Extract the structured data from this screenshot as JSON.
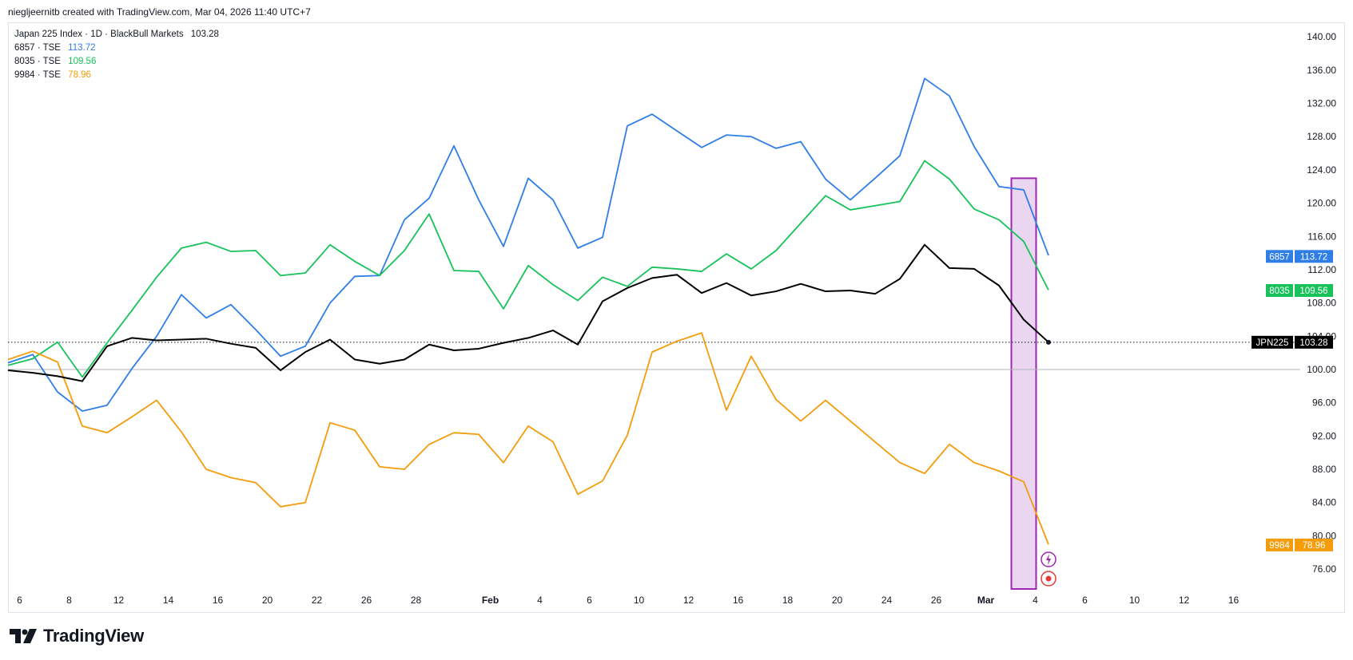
{
  "header": {
    "text": "niegljeernitb created with TradingView.com, Mar 04, 2026 11:40 UTC+7"
  },
  "legend": {
    "main": "Japan 225 Index · 1D · BlackBull Markets",
    "main_value": "103.28",
    "items": [
      {
        "label": "6857 · TSE",
        "value": "113.72",
        "color": "#2f7ee8"
      },
      {
        "label": "8035 · TSE",
        "value": "109.56",
        "color": "#17c25a"
      },
      {
        "label": "9984 · TSE",
        "value": "78.96",
        "color": "#f59c0b"
      }
    ]
  },
  "footer": {
    "logo_text": "TradingView"
  },
  "chart_data": {
    "type": "line",
    "ylim": [
      72.5,
      141.5
    ],
    "y_ticks": [
      "140.00",
      "136.00",
      "132.00",
      "128.00",
      "124.00",
      "120.00",
      "116.00",
      "112.00",
      "108.00",
      "104.00",
      "100.00",
      "96.00",
      "92.00",
      "88.00",
      "84.00",
      "80.00",
      "76.00"
    ],
    "x_ticks": [
      {
        "label": "6",
        "i": 0.5
      },
      {
        "label": "8",
        "i": 2.5
      },
      {
        "label": "12",
        "i": 4.5
      },
      {
        "label": "14",
        "i": 6.5
      },
      {
        "label": "16",
        "i": 8.5
      },
      {
        "label": "20",
        "i": 10.5
      },
      {
        "label": "22",
        "i": 12.5
      },
      {
        "label": "26",
        "i": 14.5
      },
      {
        "label": "28",
        "i": 16.5
      },
      {
        "label": "Feb",
        "i": 19.5,
        "bold": true
      },
      {
        "label": "4",
        "i": 21.5
      },
      {
        "label": "6",
        "i": 23.5
      },
      {
        "label": "10",
        "i": 25.5
      },
      {
        "label": "12",
        "i": 27.5
      },
      {
        "label": "16",
        "i": 29.5
      },
      {
        "label": "18",
        "i": 31.5
      },
      {
        "label": "20",
        "i": 33.5
      },
      {
        "label": "24",
        "i": 35.5
      },
      {
        "label": "26",
        "i": 37.5
      },
      {
        "label": "Mar",
        "i": 39.5,
        "bold": true
      },
      {
        "label": "4",
        "i": 41.5
      },
      {
        "label": "6",
        "i": 43.5
      },
      {
        "label": "10",
        "i": 45.5
      },
      {
        "label": "12",
        "i": 47.5
      },
      {
        "label": "16",
        "i": 49.5
      }
    ],
    "baseline": 100,
    "series": [
      {
        "name": "6857",
        "color": "#2f7ee8",
        "last": "113.72",
        "values": [
          100.8,
          101.8,
          97.3,
          95.0,
          95.7,
          100.1,
          104.0,
          109.0,
          106.2,
          107.8,
          104.8,
          101.6,
          102.8,
          108.0,
          111.2,
          111.3,
          118.0,
          120.6,
          126.9,
          120.4,
          114.8,
          123.0,
          120.4,
          114.6,
          115.9,
          129.3,
          130.7,
          128.7,
          126.7,
          128.2,
          128.0,
          126.6,
          127.4,
          122.9,
          120.4,
          123.0,
          125.7,
          135.0,
          132.9,
          126.8,
          122.0,
          121.6,
          113.72
        ]
      },
      {
        "name": "8035",
        "color": "#17c25a",
        "last": "109.56",
        "values": [
          100.5,
          101.3,
          103.3,
          99.1,
          103.2,
          107.1,
          111.1,
          114.6,
          115.3,
          114.2,
          114.3,
          111.3,
          111.6,
          115.0,
          113.0,
          111.3,
          114.3,
          118.7,
          111.9,
          111.8,
          107.3,
          112.5,
          110.2,
          108.3,
          111.1,
          110.0,
          112.3,
          112.1,
          111.8,
          113.9,
          112.1,
          114.3,
          117.6,
          120.9,
          119.2,
          119.7,
          120.2,
          125.1,
          122.9,
          119.3,
          118.0,
          115.4,
          109.56
        ]
      },
      {
        "name": "9984",
        "color": "#f59c0b",
        "last": "78.96",
        "values": [
          101.2,
          102.2,
          100.9,
          93.2,
          92.4,
          94.3,
          96.3,
          92.5,
          88.0,
          87.0,
          86.4,
          83.5,
          84.0,
          93.6,
          92.7,
          88.3,
          88.0,
          91.0,
          92.4,
          92.2,
          88.8,
          93.2,
          91.3,
          85.0,
          86.6,
          92.1,
          102.1,
          103.4,
          104.4,
          95.1,
          101.6,
          96.4,
          93.8,
          96.3,
          93.8,
          91.3,
          88.8,
          87.5,
          91.0,
          88.8,
          87.8,
          86.5,
          78.96
        ]
      },
      {
        "name": "JPN225",
        "color": "#000000",
        "last": "103.28",
        "values": [
          99.9,
          99.6,
          99.2,
          98.6,
          102.8,
          103.8,
          103.5,
          103.6,
          103.7,
          103.1,
          102.6,
          99.9,
          102.1,
          103.6,
          101.2,
          100.7,
          101.2,
          103.0,
          102.3,
          102.5,
          103.2,
          103.8,
          104.7,
          103.0,
          108.2,
          109.8,
          111.0,
          111.4,
          109.2,
          110.4,
          108.9,
          109.4,
          110.3,
          109.4,
          109.5,
          109.1,
          110.9,
          115.0,
          112.2,
          112.1,
          110.1,
          106.0,
          103.28
        ]
      }
    ],
    "highlight": {
      "from_i": 40.5,
      "to_i": 41.5,
      "color": "#9c27b0"
    }
  }
}
